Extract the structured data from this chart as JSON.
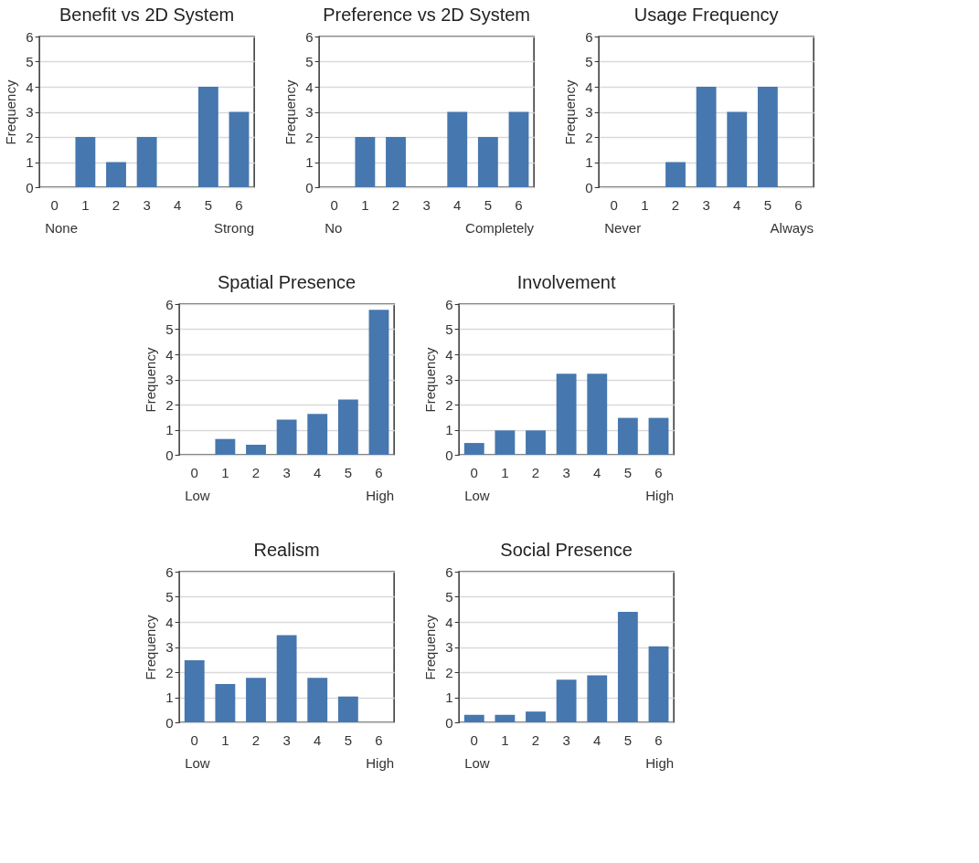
{
  "chart_data": [
    {
      "type": "bar",
      "title": "Benefit vs 2D System",
      "ylabel": "Frequency",
      "categories": [
        "0",
        "1",
        "2",
        "3",
        "4",
        "5",
        "6"
      ],
      "values": [
        0,
        2,
        1,
        2,
        0,
        4,
        3
      ],
      "color": "#4677af",
      "ylim": [
        0,
        6
      ],
      "yticks": [
        0,
        1,
        2,
        3,
        4,
        5,
        6
      ],
      "grid": "y",
      "annotations": [
        "None",
        "Strong"
      ]
    },
    {
      "type": "bar",
      "title": "Preference vs 2D System",
      "ylabel": "Frequency",
      "categories": [
        "0",
        "1",
        "2",
        "3",
        "4",
        "5",
        "6"
      ],
      "values": [
        0,
        2,
        2,
        0,
        3,
        2,
        3
      ],
      "color": "#4677af",
      "ylim": [
        0,
        6
      ],
      "yticks": [
        0,
        1,
        2,
        3,
        4,
        5,
        6
      ],
      "grid": "y",
      "annotations": [
        "No",
        "Completely"
      ]
    },
    {
      "type": "bar",
      "title": "Usage Frequency",
      "ylabel": "Frequency",
      "categories": [
        "0",
        "1",
        "2",
        "3",
        "4",
        "5",
        "6"
      ],
      "values": [
        0,
        0,
        1,
        4,
        3,
        4,
        0
      ],
      "color": "#4677af",
      "ylim": [
        0,
        6
      ],
      "yticks": [
        0,
        1,
        2,
        3,
        4,
        5,
        6
      ],
      "grid": "y",
      "annotations": [
        "Never",
        "Always"
      ]
    },
    {
      "type": "bar",
      "title": "Spatial Presence",
      "ylabel": "Frequency",
      "categories": [
        "0",
        "1",
        "2",
        "3",
        "4",
        "5",
        "6"
      ],
      "values": [
        0,
        0.63,
        0.4,
        1.4,
        1.63,
        2.2,
        5.77
      ],
      "color": "#4677af",
      "ylim": [
        0,
        6
      ],
      "yticks": [
        0,
        1,
        2,
        3,
        4,
        5,
        6
      ],
      "grid": "y",
      "annotations": [
        "Low",
        "High"
      ]
    },
    {
      "type": "bar",
      "title": "Involvement",
      "ylabel": "Frequency",
      "categories": [
        "0",
        "1",
        "2",
        "3",
        "4",
        "5",
        "6"
      ],
      "values": [
        0.47,
        0.97,
        0.97,
        3.23,
        3.23,
        1.47,
        1.47
      ],
      "color": "#4677af",
      "ylim": [
        0,
        6
      ],
      "yticks": [
        0,
        1,
        2,
        3,
        4,
        5,
        6
      ],
      "grid": "y",
      "annotations": [
        "Low",
        "High"
      ]
    },
    {
      "type": "bar",
      "title": "Realism",
      "ylabel": "Frequency",
      "categories": [
        "0",
        "1",
        "2",
        "3",
        "4",
        "5",
        "6"
      ],
      "values": [
        2.47,
        1.53,
        1.77,
        3.47,
        1.77,
        1.03,
        0
      ],
      "color": "#4677af",
      "ylim": [
        0,
        6
      ],
      "yticks": [
        0,
        1,
        2,
        3,
        4,
        5,
        6
      ],
      "grid": "y",
      "annotations": [
        "Low",
        "High"
      ]
    },
    {
      "type": "bar",
      "title": "Social Presence",
      "ylabel": "Frequency",
      "categories": [
        "0",
        "1",
        "2",
        "3",
        "4",
        "5",
        "6"
      ],
      "values": [
        0.3,
        0.3,
        0.43,
        1.7,
        1.87,
        4.4,
        3.03
      ],
      "color": "#4677af",
      "ylim": [
        0,
        6
      ],
      "yticks": [
        0,
        1,
        2,
        3,
        4,
        5,
        6
      ],
      "grid": "y",
      "annotations": [
        "Low",
        "High"
      ]
    }
  ]
}
